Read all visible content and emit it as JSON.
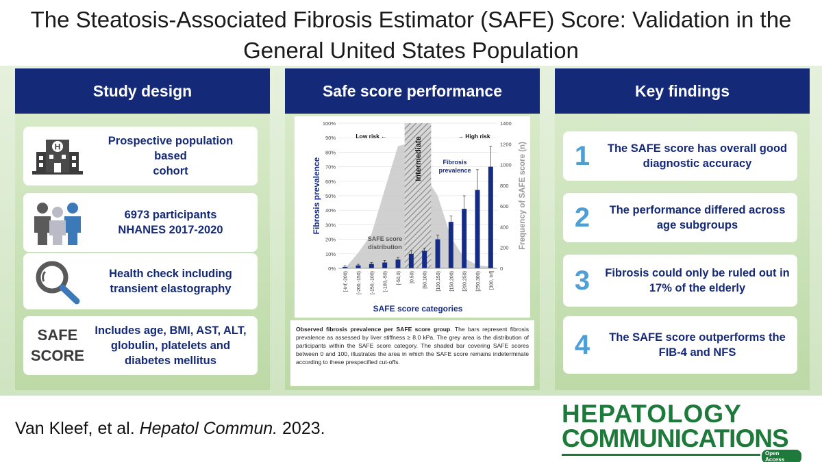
{
  "title_line1": "The Steatosis-Associated Fibrosis Estimator (SAFE) Score: Validation in the",
  "title_line2": "General United States Population",
  "colors": {
    "navy": "#142a78",
    "green_bg": "#cfe4c1",
    "number_blue": "#4d9fd6",
    "brand_green": "#1d7a3a"
  },
  "panels": {
    "study_design": {
      "header": "Study design",
      "cards": [
        {
          "icon": "hospital-icon",
          "text_lines": [
            "Prospective population based",
            "cohort"
          ]
        },
        {
          "icon": "people-icon",
          "text_lines": [
            "6973 participants",
            "NHANES 2017-2020"
          ]
        },
        {
          "icon": "magnifier-icon",
          "text_lines": [
            "Health check including",
            "transient elastography"
          ]
        },
        {
          "icon": "safe-score-logo",
          "logo_lines": [
            "SAFE",
            "SCORE"
          ],
          "text_lines": [
            "Includes age, BMI, AST, ALT,",
            "globulin, platelets and",
            "diabetes mellitus"
          ]
        }
      ]
    },
    "performance": {
      "header": "Safe score performance",
      "caption_bold": "Observed fibrosis prevalence per SAFE score group",
      "caption_rest": ". The bars represent fibrosis prevalence as assessed by liver stiffness ≥ 8.0 kPa. The grey area is the distribution of participants within the SAFE score category. The shaded bar covering SAFE scores between 0 and 100, illustrates the area in which the SAFE score remains indeterminate according to these prespecified cut-offs."
    },
    "key_findings": {
      "header": "Key findings",
      "items": [
        {
          "num": "1",
          "text_lines": [
            "The SAFE score has overall good",
            "diagnostic accuracy"
          ]
        },
        {
          "num": "2",
          "text_lines": [
            "The performance differed across",
            "age subgroups"
          ]
        },
        {
          "num": "3",
          "text_lines": [
            "Fibrosis could only be ruled out in",
            "17% of the elderly"
          ]
        },
        {
          "num": "4",
          "text_lines": [
            "The SAFE score outperforms the",
            "FIB-4 and NFS"
          ]
        }
      ]
    }
  },
  "citation": {
    "authors": "Van Kleef, et al. ",
    "journal": "Hepatol Commun.",
    "year": " 2023."
  },
  "journal_logo": {
    "line1": "HEPATOLOGY",
    "line2": "COMMUNICATIONS",
    "badge": "Open Access"
  },
  "chart_data": {
    "type": "bar",
    "categories": [
      "[-Inf,-200)",
      "[-200,-150)",
      "[-150,-100)",
      "[-100,-50)",
      "[-50,0)",
      "[0,50)",
      "[50,100)",
      "[100,150)",
      "[150,200)",
      "[200,250)",
      "[250,300)",
      "[300, Inf]"
    ],
    "series": [
      {
        "name": "Fibrosis prevalence",
        "values": [
          1,
          2,
          3,
          4,
          6,
          10,
          12,
          20,
          32,
          41,
          54,
          70
        ],
        "error_upper": [
          1.8,
          2.8,
          4,
          5.5,
          7.5,
          12,
          14,
          23,
          36,
          50,
          68,
          84
        ]
      },
      {
        "name": "SAFE score distribution",
        "axis": "right",
        "values": [
          0,
          150,
          330,
          760,
          1180,
          1210,
          900,
          700,
          300,
          100,
          30,
          15
        ]
      }
    ],
    "xlabel": "SAFE score categories",
    "ylabel": "Fibrosis prevalence",
    "y2label": "Frequency of SAFE score (n)",
    "ylim": [
      0,
      100
    ],
    "y2lim": [
      0,
      1400
    ],
    "yticks": [
      "0%",
      "10%",
      "20%",
      "30%",
      "40%",
      "50%",
      "60%",
      "70%",
      "80%",
      "90%",
      "100%"
    ],
    "y2ticks": [
      "0",
      "200",
      "400",
      "600",
      "800",
      "1000",
      "1200",
      "1400"
    ],
    "shaded_region": {
      "from_category": "[0,50)",
      "to_category": "[50,100)",
      "label": "Intermediate"
    },
    "annotations": [
      "Low risk ←",
      "→ High risk",
      "Fibrosis",
      "prevalence",
      "SAFE score",
      "distribution"
    ],
    "grid": true
  }
}
